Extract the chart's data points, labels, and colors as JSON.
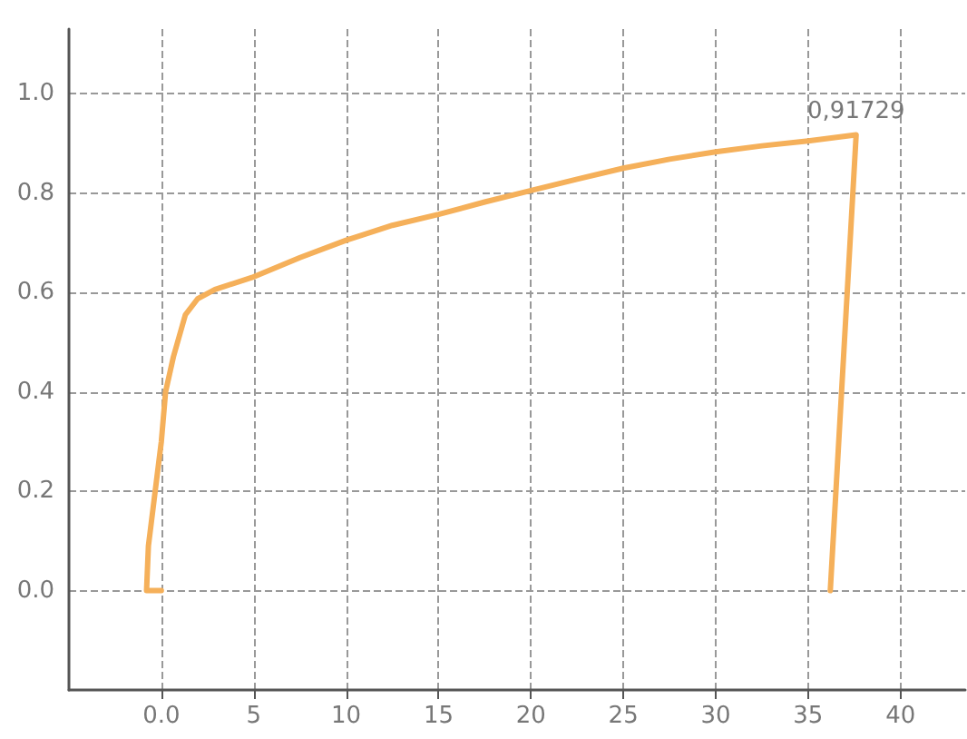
{
  "chart_data": {
    "type": "line",
    "marker": "none",
    "line_style": "solid",
    "grid": true,
    "xlim": [
      -5,
      43.5
    ],
    "ylim": [
      -0.2,
      1.13
    ],
    "xticks": [
      {
        "value": 0,
        "label": "0.0"
      },
      5,
      10,
      15,
      20,
      25,
      30,
      35,
      40
    ],
    "yticks": [
      {
        "value": 0,
        "label": "0.0"
      },
      {
        "value": 0.2,
        "label": "0.2"
      },
      {
        "value": 0.4,
        "label": "0.4"
      },
      {
        "value": 0.6,
        "label": "0.6"
      },
      {
        "value": 0.8,
        "label": "0.8"
      },
      {
        "value": 1,
        "label": "1.0"
      }
    ],
    "series": [
      {
        "color": "#f5b05a",
        "x": [
          0,
          -0.8,
          -0.7,
          -0.4,
          0,
          0.23,
          0.65,
          1.3,
          1.96,
          2.9,
          4.9,
          7.5,
          10,
          12.5,
          15,
          17.5,
          20,
          22.5,
          25,
          27.5,
          30,
          32.5,
          35,
          37.6,
          36.2
        ],
        "values": [
          0,
          0,
          0.09,
          0.18,
          0.3,
          0.4,
          0.47,
          0.555,
          0.587,
          0.606,
          0.63,
          0.67,
          0.705,
          0.735,
          0.757,
          0.782,
          0.805,
          0.828,
          0.85,
          0.868,
          0.883,
          0.895,
          0.905,
          0.91729,
          0
        ]
      }
    ],
    "annotations": [
      {
        "text": "0,91729",
        "x": 37.6,
        "y": 0.91729
      }
    ]
  }
}
